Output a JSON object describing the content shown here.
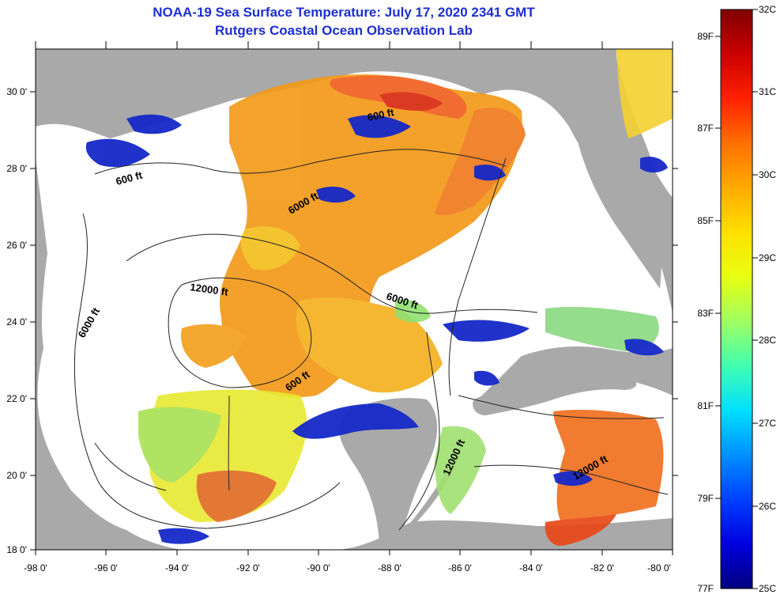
{
  "header": {
    "title": "NOAA-19 Sea Surface Temperature:  July 17, 2020 2341 GMT",
    "subtitle": "Rutgers Coastal Ocean Observation Lab"
  },
  "map": {
    "lon_labels": [
      "-98 0'",
      "-96 0'",
      "-94 0'",
      "-92 0'",
      "-90 0'",
      "-88 0'",
      "-86 0'",
      "-84 0'",
      "-82 0'",
      "-80 0'"
    ],
    "lat_labels": [
      "30 0'",
      "28 0'",
      "26 0'",
      "24 0'",
      "22 0'",
      "20 0'",
      "18 0'"
    ],
    "contour_labels": [
      "600 ft",
      "600 ft",
      "6000 ft",
      "12000 ft",
      "6000 ft",
      "6000 ft",
      "600 ft",
      "12000 ft",
      "12000 ft"
    ],
    "colors": {
      "land": "#a9a9a9",
      "cloud": "#ffffff",
      "contour": "#222222"
    }
  },
  "colorbar": {
    "f_labels": [
      "89F",
      "87F",
      "85F",
      "83F",
      "81F",
      "79F",
      "77F"
    ],
    "c_labels": [
      "32C",
      "31C",
      "30C",
      "29C",
      "28C",
      "27C",
      "26C",
      "25C"
    ],
    "stops": [
      "#800000",
      "#cc0000",
      "#ff2000",
      "#ff7000",
      "#ffaa00",
      "#ffe000",
      "#e8ff10",
      "#a0ff60",
      "#40ffb0",
      "#00e0ff",
      "#0090ff",
      "#0040ff",
      "#0000e0",
      "#000080"
    ]
  }
}
